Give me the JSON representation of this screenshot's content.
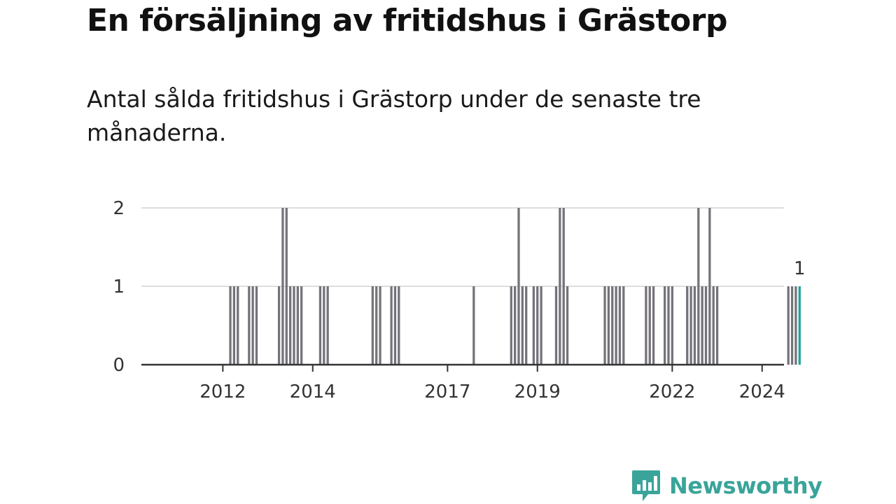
{
  "header": {
    "title": "En försäljning av fritidshus i Grästorp",
    "subtitle": "Antal sålda fritidshus i Grästorp under de senaste tre månaderna."
  },
  "brand": {
    "name": "Newsworthy",
    "color": "#3aa49a"
  },
  "colors": {
    "bar": "#75737a",
    "highlight": "#1fa39b",
    "grid": "#dddddd",
    "axis": "#333333"
  },
  "chart_data": {
    "type": "bar",
    "x_unit": "month",
    "ylim": [
      0,
      2
    ],
    "y_ticks": [
      "0",
      "1",
      "2"
    ],
    "x_ticks": [
      "2012",
      "2014",
      "2017",
      "2019",
      "2022",
      "2024"
    ],
    "grid": true,
    "data_label": "1",
    "series": [
      {
        "values": [
          {
            "x": "2012-03",
            "y": 1
          },
          {
            "x": "2012-04",
            "y": 1
          },
          {
            "x": "2012-05",
            "y": 1
          },
          {
            "x": "2012-08",
            "y": 1
          },
          {
            "x": "2012-09",
            "y": 1
          },
          {
            "x": "2012-10",
            "y": 1
          },
          {
            "x": "2013-04",
            "y": 1
          },
          {
            "x": "2013-05",
            "y": 2
          },
          {
            "x": "2013-06",
            "y": 2
          },
          {
            "x": "2013-07",
            "y": 1
          },
          {
            "x": "2013-08",
            "y": 1
          },
          {
            "x": "2013-09",
            "y": 1
          },
          {
            "x": "2013-10",
            "y": 1
          },
          {
            "x": "2014-03",
            "y": 1
          },
          {
            "x": "2014-04",
            "y": 1
          },
          {
            "x": "2014-05",
            "y": 1
          },
          {
            "x": "2015-05",
            "y": 1
          },
          {
            "x": "2015-06",
            "y": 1
          },
          {
            "x": "2015-07",
            "y": 1
          },
          {
            "x": "2015-10",
            "y": 1
          },
          {
            "x": "2015-11",
            "y": 1
          },
          {
            "x": "2015-12",
            "y": 1
          },
          {
            "x": "2017-08",
            "y": 1
          },
          {
            "x": "2018-06",
            "y": 1
          },
          {
            "x": "2018-07",
            "y": 1
          },
          {
            "x": "2018-08",
            "y": 2
          },
          {
            "x": "2018-09",
            "y": 1
          },
          {
            "x": "2018-10",
            "y": 1
          },
          {
            "x": "2018-12",
            "y": 1
          },
          {
            "x": "2019-01",
            "y": 1
          },
          {
            "x": "2019-02",
            "y": 1
          },
          {
            "x": "2019-06",
            "y": 1
          },
          {
            "x": "2019-07",
            "y": 2
          },
          {
            "x": "2019-08",
            "y": 2
          },
          {
            "x": "2019-09",
            "y": 1
          },
          {
            "x": "2020-07",
            "y": 1
          },
          {
            "x": "2020-08",
            "y": 1
          },
          {
            "x": "2020-09",
            "y": 1
          },
          {
            "x": "2020-10",
            "y": 1
          },
          {
            "x": "2020-11",
            "y": 1
          },
          {
            "x": "2020-12",
            "y": 1
          },
          {
            "x": "2021-06",
            "y": 1
          },
          {
            "x": "2021-07",
            "y": 1
          },
          {
            "x": "2021-08",
            "y": 1
          },
          {
            "x": "2021-11",
            "y": 1
          },
          {
            "x": "2021-12",
            "y": 1
          },
          {
            "x": "2022-01",
            "y": 1
          },
          {
            "x": "2022-05",
            "y": 1
          },
          {
            "x": "2022-06",
            "y": 1
          },
          {
            "x": "2022-07",
            "y": 1
          },
          {
            "x": "2022-08",
            "y": 2
          },
          {
            "x": "2022-09",
            "y": 1
          },
          {
            "x": "2022-10",
            "y": 1
          },
          {
            "x": "2022-11",
            "y": 2
          },
          {
            "x": "2022-12",
            "y": 1
          },
          {
            "x": "2023-01",
            "y": 1
          },
          {
            "x": "2024-08",
            "y": 1
          },
          {
            "x": "2024-09",
            "y": 1
          },
          {
            "x": "2024-10",
            "y": 1
          },
          {
            "x": "2024-11",
            "y": 1
          }
        ]
      }
    ],
    "highlight": {
      "x": "2024-11",
      "y": 1
    }
  }
}
